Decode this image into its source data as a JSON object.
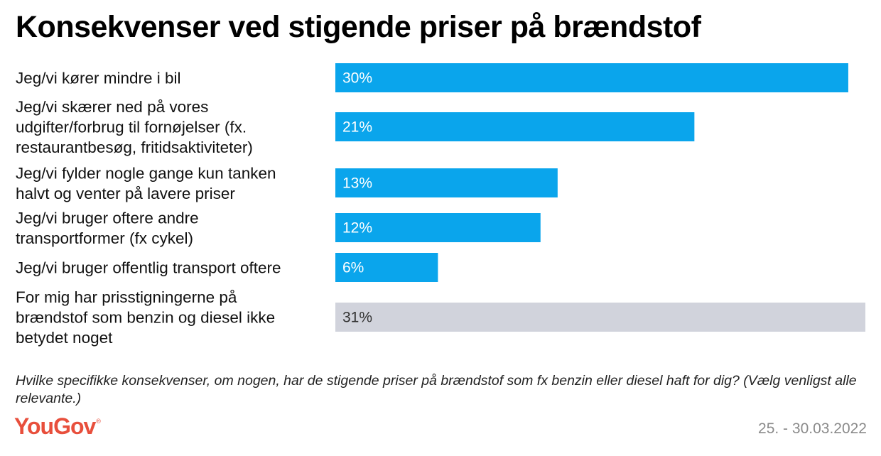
{
  "title": "Konsekvenser ved stigende priser på brændstof",
  "question": "Hvilke specifikke konsekvenser, om nogen, har de stigende priser på brændstof som fx benzin eller diesel haft for dig? (Vælg venligst alle relevante.)",
  "brand": "YouGov",
  "brand_mark": "®",
  "date": "25. - 30.03.2022",
  "colors": {
    "bar": "#0aa5ec",
    "bar_neutral": "#d1d3dc",
    "label_on_bar": "#ffffff",
    "label_on_neutral": "#333333",
    "brand": "#e84f3c"
  },
  "chart_data": {
    "type": "bar",
    "orientation": "horizontal",
    "categories": [
      [
        "Jeg/vi kører mindre i bil"
      ],
      [
        "Jeg/vi skærer ned på vores",
        "udgifter/forbrug til fornøjelser (fx.",
        "restaurantbesøg, fritidsaktiviteter)"
      ],
      [
        "Jeg/vi fylder nogle gange kun tanken",
        "halvt og venter på lavere priser"
      ],
      [
        "Jeg/vi bruger oftere andre",
        "transportformer (fx cykel)"
      ],
      [
        "Jeg/vi bruger offentlig transport oftere"
      ],
      [
        "For mig har prisstigningerne på",
        "brændstof som benzin og diesel ikke",
        "betydet noget"
      ]
    ],
    "values": [
      30,
      21,
      13,
      12,
      6,
      31
    ],
    "value_labels": [
      "30%",
      "21%",
      "13%",
      "12%",
      "6%",
      "31%"
    ],
    "neutral": [
      false,
      false,
      false,
      false,
      false,
      true
    ],
    "unit": "%",
    "xlim": [
      0,
      31
    ],
    "grid": false,
    "legend": "none"
  }
}
